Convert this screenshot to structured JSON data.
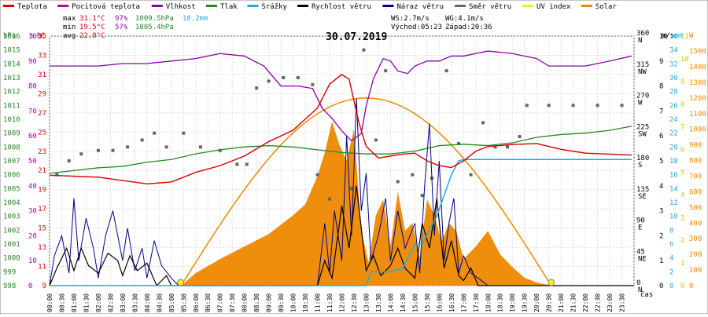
{
  "chart_data": {
    "type": "line",
    "title": "30.07.2019",
    "legend": [
      {
        "label": "Teplota",
        "color": "#dd0000"
      },
      {
        "label": "Pocitová teplota",
        "color": "#aa00aa"
      },
      {
        "label": "Vlhkost",
        "color": "#8800aa"
      },
      {
        "label": "Tlak",
        "color": "#228822"
      },
      {
        "label": "Srážky",
        "color": "#22aadd"
      },
      {
        "label": "Rychlost větru",
        "color": "#000000"
      },
      {
        "label": "Náraz větru",
        "color": "#000088"
      },
      {
        "label": "Směr větru",
        "color": "#666666"
      },
      {
        "label": "UV index",
        "color": "#eeee22"
      },
      {
        "label": "Solar",
        "color": "#ee8800"
      }
    ],
    "stats": {
      "max_label": "max",
      "max_temp": "31.1°C",
      "max_hum": "97%",
      "max_press": "1009.5hPa",
      "rain": "18.2mm",
      "min_label": "min",
      "min_temp": "19.5°C",
      "min_hum": "57%",
      "min_press": "1005.4hPa",
      "avg_label": "avg",
      "avg_temp": "22.8°C",
      "ws": "WS:2.7m/s",
      "wg": "WG:4.1m/s",
      "sunrise": "Východ:05:23",
      "sunset": "Západ:20:36"
    },
    "axes": {
      "hpa_unit": "hPa",
      "pct_unit": "%",
      "c_unit": "°C",
      "ms_unit": "m/s",
      "mm_unit": "mm",
      "w_unit": "W",
      "time_unit": "čas",
      "hpa_ticks": [
        "1016",
        "1015",
        "1014",
        "1013",
        "1012",
        "1011",
        "1010",
        "1009",
        "1008",
        "1007",
        "1006",
        "1005",
        "1004",
        "1003",
        "1002",
        "1001",
        "1000",
        "999",
        "998"
      ],
      "pct_ticks": [
        "100",
        "90",
        "80",
        "70",
        "60",
        "50",
        "40",
        "30",
        "20",
        "10",
        "0"
      ],
      "c_ticks": [
        "35",
        "33",
        "31",
        "29",
        "27",
        "25",
        "23",
        "21",
        "19",
        "17",
        "15",
        "13",
        "11",
        "9"
      ],
      "dir_ticks": [
        "360\nN",
        "315\nNW",
        "270\nW",
        "225\nSW",
        "180\nS",
        "135\nSE",
        "90\nE",
        "45\nNE",
        "0\nN"
      ],
      "ms_ticks": [
        "10",
        "9",
        "8",
        "7",
        "6",
        "5",
        "4",
        "3",
        "2",
        "1",
        "0"
      ],
      "mm_ticks": [
        "36",
        "34",
        "32",
        "30",
        "28",
        "26",
        "24",
        "22",
        "20",
        "18",
        "16",
        "14",
        "12",
        "10",
        "8",
        "6",
        "4",
        "2",
        "0"
      ],
      "uv_ticks": [
        "11",
        "10",
        "9",
        "8",
        "7",
        "6",
        "5",
        "4",
        "3",
        "2",
        "1",
        "0"
      ],
      "w_ticks": [
        "1500",
        "1400",
        "1300",
        "1200",
        "1100",
        "1000",
        "900",
        "800",
        "700",
        "600",
        "500",
        "400",
        "300",
        "200",
        "100",
        "0"
      ],
      "x_ticks": [
        "00:00",
        "00:30",
        "01:00",
        "01:30",
        "02:00",
        "02:30",
        "03:00",
        "03:30",
        "04:00",
        "04:30",
        "05:00",
        "05:30",
        "06:00",
        "06:30",
        "07:00",
        "07:30",
        "08:00",
        "08:30",
        "09:00",
        "09:30",
        "10:00",
        "10:30",
        "11:00",
        "11:30",
        "12:00",
        "12:30",
        "13:00",
        "13:30",
        "14:00",
        "14:30",
        "15:00",
        "15:30",
        "16:00",
        "16:30",
        "17:00",
        "17:30",
        "18:00",
        "18:30",
        "19:00",
        "19:30",
        "20:00",
        "20:30",
        "21:00",
        "21:30",
        "22:00",
        "22:30",
        "23:00",
        "23:30"
      ]
    },
    "temperature": {
      "x": [
        0,
        2,
        4,
        5,
        6,
        7,
        8,
        9,
        10,
        11,
        11.5,
        12,
        12.3,
        12.7,
        13,
        13.5,
        14,
        14.5,
        15,
        15.5,
        16,
        16.5,
        17,
        17.5,
        18,
        19,
        20,
        21,
        22,
        23,
        23.9
      ],
      "y": [
        20.5,
        20.3,
        19.6,
        19.8,
        20.8,
        21.5,
        22.5,
        24,
        25.2,
        27.5,
        30,
        31,
        30.5,
        26,
        23.5,
        22.3,
        22.5,
        22.7,
        22.8,
        22,
        21.5,
        21.3,
        22,
        23,
        23.5,
        23.7,
        23.8,
        23.2,
        22.8,
        22.7,
        22.6
      ]
    },
    "feels_like": {
      "x": [
        0,
        2,
        4,
        5,
        6,
        7,
        8,
        9,
        10,
        11,
        11.5,
        12,
        12.3,
        12.7,
        13,
        13.5,
        14,
        14.5,
        15,
        15.5,
        16,
        16.5,
        17,
        17.5,
        18,
        19,
        20,
        21,
        22,
        23,
        23.9
      ],
      "y": [
        20.5,
        20.3,
        19.6,
        19.8,
        20.8,
        21.5,
        22.5,
        24,
        25.2,
        27.5,
        30,
        31,
        30.5,
        26,
        23.5,
        22.3,
        22.5,
        22.7,
        22.8,
        22,
        21.5,
        21.3,
        22,
        23,
        23.5,
        23.7,
        23.8,
        23.2,
        22.8,
        22.7,
        22.6
      ]
    },
    "humidity": {
      "x": [
        0,
        1,
        2,
        3,
        4,
        5,
        6,
        7,
        8,
        8.8,
        9.5,
        10.2,
        10.8,
        11.2,
        11.6,
        12,
        12.4,
        12.8,
        13,
        13.3,
        13.7,
        14,
        14.3,
        14.7,
        15,
        15.5,
        16,
        16.5,
        17,
        17.5,
        18,
        19,
        20,
        20.5,
        21,
        22,
        23,
        23.9
      ],
      "y": [
        88,
        88,
        88,
        89,
        89,
        90,
        91,
        93,
        92,
        88,
        80,
        80,
        79,
        71,
        67,
        62,
        58,
        61,
        72,
        83,
        91,
        90,
        86,
        85,
        88,
        90,
        90,
        92,
        92,
        93,
        94,
        93,
        91,
        88,
        88,
        88,
        90,
        92
      ]
    },
    "pressure": {
      "x": [
        0,
        1,
        2,
        3,
        4,
        5,
        6,
        7,
        8,
        9,
        10,
        11,
        12,
        13,
        14,
        15,
        16,
        17,
        18,
        19,
        20,
        21,
        22,
        23,
        23.9
      ],
      "y": [
        1006.1,
        1006.3,
        1006.5,
        1006.6,
        1006.9,
        1007.1,
        1007.5,
        1007.8,
        1008.0,
        1008.1,
        1008.0,
        1007.8,
        1007.6,
        1007.5,
        1007.5,
        1007.7,
        1008.1,
        1008.2,
        1008.1,
        1008.3,
        1008.7,
        1008.9,
        1009.0,
        1009.2,
        1009.5
      ]
    },
    "rain": {
      "x": [
        0,
        12,
        13,
        13.2,
        14,
        14.5,
        15,
        15.3,
        15.6,
        15.9,
        16.1,
        16.3,
        16.5,
        16.8,
        17,
        20,
        23.9
      ],
      "y": [
        0,
        0,
        0,
        2,
        2,
        2.5,
        6,
        6,
        8,
        10,
        12,
        14,
        16,
        18,
        18.2,
        18.2,
        18.2
      ]
    },
    "wind_speed": {
      "x": [
        0,
        0.3,
        0.7,
        1,
        1.3,
        1.6,
        2,
        2.4,
        2.8,
        3,
        3.3,
        3.6,
        4,
        4.4,
        4.8,
        5,
        5.3,
        5.6,
        6,
        7,
        8,
        9,
        10,
        11,
        11.3,
        11.6,
        12,
        12.3,
        12.6,
        13,
        13.3,
        13.6,
        14,
        14.3,
        14.6,
        15,
        15.3,
        15.6,
        15.9,
        16.2,
        16.5,
        16.8,
        17,
        17.3,
        17.6,
        18,
        19,
        20,
        24
      ],
      "y": [
        0,
        0.7,
        1.5,
        0.6,
        1.5,
        0.8,
        0.5,
        1.3,
        1.0,
        0.4,
        1.2,
        0.6,
        0.9,
        0,
        0.4,
        0,
        0,
        0,
        0,
        0,
        0,
        0,
        0,
        0,
        1,
        0.3,
        3.2,
        1.5,
        4,
        0.6,
        1.2,
        0.4,
        0.8,
        1.5,
        0.7,
        0.3,
        2.5,
        1.5,
        3.5,
        0.7,
        1.8,
        0.4,
        0.2,
        0.7,
        0,
        0,
        0,
        0,
        0
      ]
    },
    "wind_gust": {
      "x": [
        0,
        0.2,
        0.5,
        0.8,
        1,
        1.2,
        1.5,
        1.8,
        2,
        2.3,
        2.6,
        3,
        3.2,
        3.5,
        3.8,
        4,
        4.3,
        4.6,
        5,
        5.3,
        5.6,
        6,
        7,
        8,
        9,
        10,
        11,
        11.3,
        11.5,
        11.7,
        12,
        12.2,
        12.4,
        12.6,
        12.8,
        13,
        13.2,
        13.5,
        13.8,
        14,
        14.3,
        14.6,
        15,
        15.2,
        15.4,
        15.6,
        15.8,
        16,
        16.2,
        16.4,
        16.6,
        16.8,
        17,
        17.3,
        17.6,
        18,
        19,
        20,
        24
      ],
      "y": [
        0,
        1.2,
        2,
        0.5,
        3.5,
        1,
        2.7,
        1.5,
        0.3,
        2,
        3,
        1,
        2.3,
        0.6,
        1.5,
        0.3,
        1.8,
        0.8,
        0.3,
        0,
        0,
        0,
        0,
        0,
        0,
        0,
        0,
        2.5,
        0.5,
        3,
        1,
        6,
        2,
        7.5,
        3,
        4.5,
        1,
        2,
        3.5,
        1,
        3,
        1.5,
        2.5,
        0.5,
        4,
        6.5,
        2,
        5,
        1,
        2.5,
        3.5,
        0.5,
        1.2,
        0.5,
        0.3,
        0,
        0,
        0,
        0
      ]
    },
    "solar": {
      "x": [
        5.4,
        6,
        7,
        8,
        9,
        10,
        10.5,
        11,
        11.3,
        11.6,
        11.9,
        12.2,
        12.5,
        12.8,
        13.1,
        13.4,
        13.7,
        14,
        14.3,
        14.6,
        14.9,
        15.2,
        15.5,
        15.8,
        16.1,
        16.4,
        16.7,
        17,
        17.5,
        18,
        18.5,
        19,
        19.5,
        20,
        20.6
      ],
      "y": [
        0,
        80,
        170,
        250,
        330,
        450,
        520,
        700,
        850,
        1050,
        900,
        800,
        1000,
        350,
        150,
        450,
        550,
        250,
        600,
        350,
        400,
        180,
        550,
        450,
        280,
        400,
        350,
        170,
        250,
        350,
        200,
        120,
        50,
        20,
        0
      ]
    },
    "clear_sky_solar": {
      "x": [
        5.4,
        7,
        9,
        11,
        13,
        15,
        17,
        19,
        20.6
      ],
      "y": [
        0,
        500,
        900,
        1150,
        1200,
        1100,
        750,
        250,
        0
      ]
    },
    "wind_direction": {
      "x": [
        0.3,
        0.8,
        1.3,
        2,
        2.6,
        3.2,
        3.8,
        4.3,
        4.8,
        5.5,
        6.2,
        7,
        7.7,
        8.1,
        8.5,
        9,
        9.6,
        10.2,
        10.8,
        11,
        11.5,
        12.4,
        12.9,
        13.4,
        13.8,
        14.3,
        14.9,
        15.3,
        15.7,
        16.3,
        16.8,
        17.3,
        17.8,
        18.3,
        18.8,
        19.3,
        19.6,
        20.5,
        21.5,
        22.5,
        23.5
      ],
      "y": [
        160,
        180,
        190,
        195,
        195,
        200,
        210,
        220,
        200,
        220,
        200,
        195,
        175,
        175,
        285,
        295,
        300,
        300,
        290,
        160,
        125,
        140,
        340,
        210,
        310,
        150,
        160,
        130,
        155,
        310,
        205,
        160,
        235,
        200,
        200,
        215,
        260,
        260,
        260,
        260,
        260
      ]
    },
    "sun_markers": {
      "sunrise": 5.38,
      "sunset": 20.6
    }
  }
}
